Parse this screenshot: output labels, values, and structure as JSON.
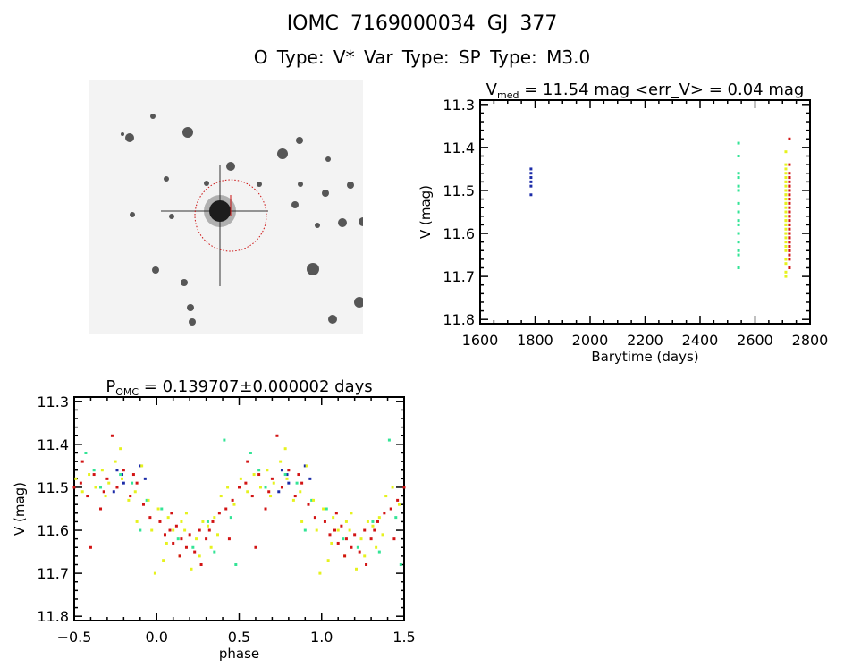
{
  "header": {
    "line1": "IOMC 7169000034    GJ    377",
    "line2": "O Type: V*   Var Type:    SP Type: M3.0"
  },
  "colors": {
    "blue": "#1c2ca8",
    "green": "#33e496",
    "yellow": "#e6f21e",
    "red": "#d21414",
    "circle": "#cc1111"
  },
  "chart_data": [
    {
      "type": "scatter",
      "id": "lightcurve",
      "title": "V",
      "title_sub": "med",
      "title_rest": " = 11.54 mag <err_V> = 0.04 mag",
      "xlabel": "Barytime (days)",
      "ylabel": "V (mag)",
      "xlim": [
        1600,
        2800
      ],
      "ylim": [
        11.29,
        11.81
      ],
      "y_inverted": true,
      "xticks": [
        "1600",
        "1800",
        "2000",
        "2200",
        "2400",
        "2600",
        "2800"
      ],
      "yticks": [
        "11.3",
        "11.4",
        "11.5",
        "11.6",
        "11.7",
        "11.8"
      ]
    },
    {
      "type": "scatter",
      "id": "phased",
      "title": "P",
      "title_sub": "OMC",
      "title_rest": " = 0.139707±0.000002 days",
      "xlabel": "phase",
      "ylabel": "V (mag)",
      "xlim": [
        -0.5,
        1.5
      ],
      "ylim": [
        11.29,
        11.81
      ],
      "y_inverted": true,
      "xticks": [
        "-0.5",
        "0.0",
        "0.5",
        "1.0",
        "1.5"
      ],
      "yticks": [
        "11.3",
        "11.4",
        "11.5",
        "11.6",
        "11.7",
        "11.8"
      ]
    }
  ],
  "series": [
    {
      "name": "blue",
      "barytime": 1785,
      "points": [
        [
          0.76,
          11.46
        ],
        [
          0.79,
          11.47
        ],
        [
          0.9,
          11.45
        ],
        [
          0.93,
          11.48
        ],
        [
          0.8,
          11.49
        ],
        [
          0.74,
          11.51
        ]
      ]
    },
    {
      "name": "green",
      "barytime": 2540,
      "points": [
        [
          0.03,
          11.55
        ],
        [
          0.13,
          11.62
        ],
        [
          0.22,
          11.64
        ],
        [
          0.35,
          11.65
        ],
        [
          0.41,
          11.39
        ],
        [
          0.48,
          11.68
        ],
        [
          0.57,
          11.42
        ],
        [
          0.66,
          11.5
        ],
        [
          0.78,
          11.47
        ],
        [
          0.85,
          11.49
        ],
        [
          0.9,
          11.6
        ],
        [
          0.94,
          11.53
        ],
        [
          0.31,
          11.58
        ],
        [
          0.62,
          11.46
        ],
        [
          0.45,
          11.57
        ]
      ]
    },
    {
      "name": "yellow",
      "barytime": 2712,
      "points": [
        [
          0.01,
          11.55
        ],
        [
          0.04,
          11.67
        ],
        [
          0.07,
          11.57
        ],
        [
          0.1,
          11.6
        ],
        [
          0.14,
          11.66
        ],
        [
          0.17,
          11.6
        ],
        [
          0.21,
          11.69
        ],
        [
          0.24,
          11.62
        ],
        [
          0.28,
          11.58
        ],
        [
          0.31,
          11.59
        ],
        [
          0.35,
          11.57
        ],
        [
          0.39,
          11.52
        ],
        [
          0.43,
          11.5
        ],
        [
          0.47,
          11.54
        ],
        [
          0.51,
          11.48
        ],
        [
          0.55,
          11.51
        ],
        [
          0.59,
          11.47
        ],
        [
          0.63,
          11.5
        ],
        [
          0.67,
          11.46
        ],
        [
          0.71,
          11.49
        ],
        [
          0.75,
          11.44
        ],
        [
          0.79,
          11.48
        ],
        [
          0.83,
          11.53
        ],
        [
          0.87,
          11.51
        ],
        [
          0.91,
          11.45
        ],
        [
          0.95,
          11.53
        ],
        [
          0.99,
          11.7
        ],
        [
          0.33,
          11.64
        ],
        [
          0.18,
          11.56
        ],
        [
          0.26,
          11.66
        ],
        [
          0.06,
          11.63
        ],
        [
          0.37,
          11.61
        ],
        [
          0.69,
          11.52
        ],
        [
          0.88,
          11.58
        ],
        [
          0.97,
          11.6
        ],
        [
          0.15,
          11.58
        ],
        [
          0.78,
          11.41
        ]
      ]
    },
    {
      "name": "red",
      "barytime": 2725,
      "points": [
        [
          0.02,
          11.58
        ],
        [
          0.05,
          11.61
        ],
        [
          0.08,
          11.6
        ],
        [
          0.1,
          11.63
        ],
        [
          0.12,
          11.59
        ],
        [
          0.15,
          11.62
        ],
        [
          0.18,
          11.64
        ],
        [
          0.2,
          11.61
        ],
        [
          0.23,
          11.65
        ],
        [
          0.26,
          11.6
        ],
        [
          0.3,
          11.62
        ],
        [
          0.34,
          11.58
        ],
        [
          0.38,
          11.56
        ],
        [
          0.42,
          11.55
        ],
        [
          0.46,
          11.53
        ],
        [
          0.5,
          11.5
        ],
        [
          0.54,
          11.49
        ],
        [
          0.58,
          11.52
        ],
        [
          0.62,
          11.47
        ],
        [
          0.66,
          11.55
        ],
        [
          0.7,
          11.48
        ],
        [
          0.73,
          11.38
        ],
        [
          0.76,
          11.5
        ],
        [
          0.8,
          11.46
        ],
        [
          0.84,
          11.52
        ],
        [
          0.88,
          11.49
        ],
        [
          0.92,
          11.54
        ],
        [
          0.96,
          11.57
        ],
        [
          0.6,
          11.64
        ],
        [
          0.27,
          11.68
        ],
        [
          0.14,
          11.66
        ],
        [
          0.32,
          11.6
        ],
        [
          0.44,
          11.62
        ],
        [
          0.68,
          11.51
        ],
        [
          0.86,
          11.47
        ],
        [
          0.09,
          11.56
        ],
        [
          0.55,
          11.44
        ]
      ]
    }
  ]
}
